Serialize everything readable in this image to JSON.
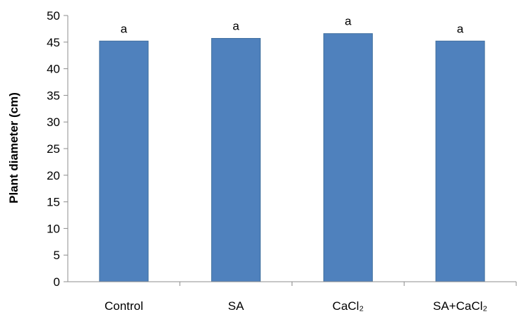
{
  "chart_data": {
    "type": "bar",
    "categories": [
      "Control",
      "SA",
      "CaCl₂",
      "SA+CaCl₂"
    ],
    "values": [
      45.2,
      45.7,
      46.6,
      45.2
    ],
    "data_labels": [
      "a",
      "a",
      "a",
      "a"
    ],
    "ylabel": "Plant diameter (cm)",
    "xlabel": "",
    "ylim": [
      0,
      50
    ],
    "yticks": [
      "0",
      "5",
      "10",
      "15",
      "20",
      "25",
      "30",
      "35",
      "40",
      "45",
      "50"
    ],
    "grid": false,
    "legend": "none",
    "colors": {
      "bar_fill": "#4f81bd",
      "bar_stroke": "#41709f",
      "axis": "#8c8c8c"
    }
  }
}
